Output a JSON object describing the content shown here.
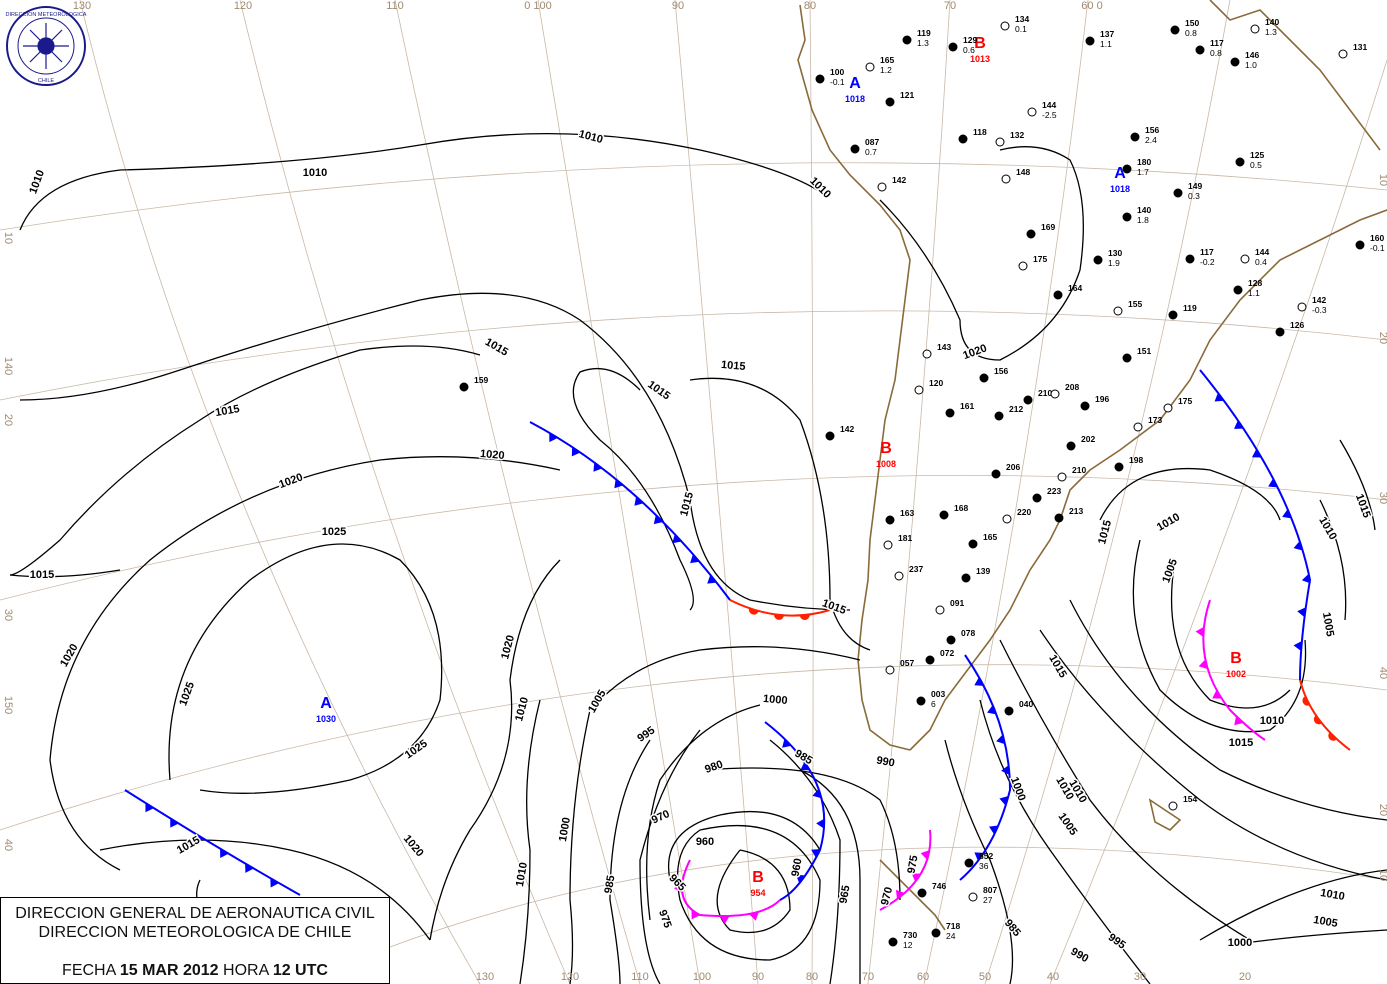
{
  "header_box": {
    "line1": "DIRECCION GENERAL DE AERONAUTICA CIVIL",
    "line2": "DIRECCION METEOROLOGICA DE CHILE",
    "date_prefix": "FECHA",
    "date": "15 MAR 2012",
    "hour_prefix": "HORA",
    "hour": "12 UTC"
  },
  "logo": {
    "text": "DIRECCION METEOROLOGICA DE CHILE",
    "color": "#1a1a8c"
  },
  "colors": {
    "high": "#0000ff",
    "low": "#ff0000",
    "cold_front": "#0000ff",
    "warm_front": "#ff2200",
    "occluded_front": "#ff00ff",
    "isobar": "#000000",
    "coast": "#8a6a3a"
  },
  "pressure_centers": [
    {
      "type": "A",
      "value": "1018"
    },
    {
      "type": "B",
      "value": "1013"
    },
    {
      "type": "A",
      "value": "1018"
    },
    {
      "type": "B",
      "value": "1008"
    },
    {
      "type": "A",
      "value": "1030"
    },
    {
      "type": "B",
      "value": "954"
    },
    {
      "type": "B",
      "value": "1002"
    }
  ],
  "isobar_labels": [
    "1010",
    "1010",
    "1010",
    "1010",
    "1015",
    "1015",
    "1015",
    "1015",
    "1020",
    "1020",
    "1025",
    "1025",
    "1015",
    "1020",
    "1020",
    "1025",
    "1020",
    "1015",
    "1010",
    "1015",
    "1015",
    "1005",
    "1000",
    "995",
    "990",
    "985",
    "980",
    "970",
    "960",
    "965",
    "960",
    "1000",
    "1010",
    "985",
    "965",
    "975",
    "975",
    "970",
    "1000",
    "1005",
    "1010",
    "1015",
    "1010",
    "1005",
    "1010",
    "1015",
    "1005",
    "1010",
    "1015",
    "1010",
    "1005",
    "1000",
    "995",
    "990",
    "985",
    "1020",
    "1015",
    "1010"
  ],
  "grid_labels": {
    "top": [
      "130",
      "120",
      "110",
      "0 100",
      "90",
      "80",
      "70",
      "60  0"
    ],
    "left": [
      "10",
      "140",
      "20",
      "30",
      "150",
      "40"
    ],
    "right": [
      "10",
      "20",
      "30",
      "40",
      "20",
      "10"
    ],
    "bottom": [
      "130",
      "120",
      "110",
      "100",
      "90",
      "80",
      "70",
      "60",
      "50",
      "40",
      "30",
      "20"
    ]
  },
  "stations": [
    {
      "id": "134",
      "p": "0.1"
    },
    {
      "id": "137",
      "p": "1.1"
    },
    {
      "id": "150",
      "p": "0.8"
    },
    {
      "id": "140",
      "p": "1.3"
    },
    {
      "id": "119",
      "p": "1.3"
    },
    {
      "id": "129",
      "p": "0.6"
    },
    {
      "id": "165",
      "p": "1.2"
    },
    {
      "id": "100",
      "p": "-0.1"
    },
    {
      "id": "121",
      "p": ""
    },
    {
      "id": "144",
      "p": "-2.5"
    },
    {
      "id": "117",
      "p": "0.8"
    },
    {
      "id": "146",
      "p": "1.0"
    },
    {
      "id": "131",
      "p": ""
    },
    {
      "id": "087",
      "p": "0.7"
    },
    {
      "id": "118",
      "p": ""
    },
    {
      "id": "132",
      "p": ""
    },
    {
      "id": "156",
      "p": "2.4"
    },
    {
      "id": "125",
      "p": "0.5"
    },
    {
      "id": "148",
      "p": ""
    },
    {
      "id": "180",
      "p": "1.7"
    },
    {
      "id": "149",
      "p": "0.3"
    },
    {
      "id": "142",
      "p": ""
    },
    {
      "id": "140",
      "p": "1.8"
    },
    {
      "id": "169",
      "p": ""
    },
    {
      "id": "175",
      "p": ""
    },
    {
      "id": "130",
      "p": "1.9"
    },
    {
      "id": "117",
      "p": "-0.2"
    },
    {
      "id": "144",
      "p": "0.4"
    },
    {
      "id": "160",
      "p": "-0.1"
    },
    {
      "id": "164",
      "p": ""
    },
    {
      "id": "155",
      "p": ""
    },
    {
      "id": "128",
      "p": "1.1"
    },
    {
      "id": "119",
      "p": ""
    },
    {
      "id": "142",
      "p": "-0.3"
    },
    {
      "id": "126",
      "p": ""
    },
    {
      "id": "159",
      "p": ""
    },
    {
      "id": "143",
      "p": ""
    },
    {
      "id": "151",
      "p": ""
    },
    {
      "id": "156",
      "p": ""
    },
    {
      "id": "120",
      "p": ""
    },
    {
      "id": "142",
      "p": ""
    },
    {
      "id": "161",
      "p": ""
    },
    {
      "id": "175",
      "p": ""
    },
    {
      "id": "196",
      "p": ""
    },
    {
      "id": "198",
      "p": ""
    },
    {
      "id": "173",
      "p": ""
    },
    {
      "id": "168",
      "p": ""
    },
    {
      "id": "163",
      "p": ""
    },
    {
      "id": "181",
      "p": ""
    },
    {
      "id": "165",
      "p": ""
    },
    {
      "id": "139",
      "p": ""
    },
    {
      "id": "091",
      "p": ""
    },
    {
      "id": "078",
      "p": ""
    },
    {
      "id": "072",
      "p": ""
    },
    {
      "id": "057",
      "p": ""
    },
    {
      "id": "003",
      "p": "6"
    },
    {
      "id": "040",
      "p": ""
    },
    {
      "id": "154",
      "p": ""
    },
    {
      "id": "852",
      "p": "36"
    },
    {
      "id": "746",
      "p": ""
    },
    {
      "id": "807",
      "p": "27"
    },
    {
      "id": "718",
      "p": "24"
    },
    {
      "id": "730",
      "p": "12"
    },
    {
      "id": "237",
      "p": ""
    },
    {
      "id": "210",
      "p": ""
    },
    {
      "id": "212",
      "p": ""
    },
    {
      "id": "208",
      "p": ""
    },
    {
      "id": "202",
      "p": ""
    },
    {
      "id": "206",
      "p": ""
    },
    {
      "id": "210",
      "p": ""
    },
    {
      "id": "223",
      "p": ""
    },
    {
      "id": "213",
      "p": ""
    },
    {
      "id": "220",
      "p": ""
    }
  ]
}
